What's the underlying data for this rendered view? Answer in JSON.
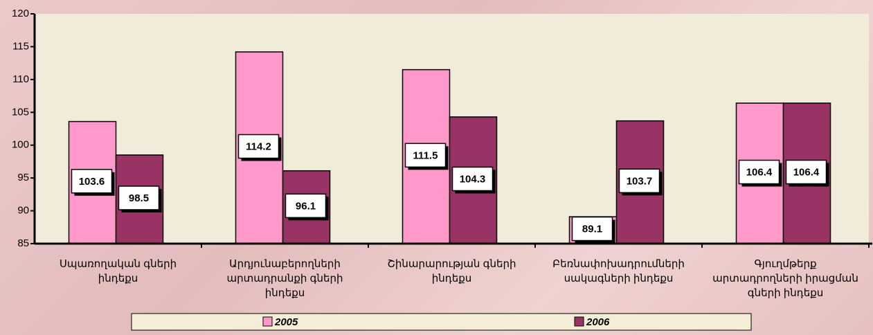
{
  "chart_data": {
    "type": "bar",
    "categories": [
      "Սպառողական գների ինդեքս",
      "Արդյունաբերողների արտադրանքի գների ինդեքս",
      "Շինարարության գների ինդեքս",
      "Բեռնափոխադրումների սակագների ինդեքս",
      "Գյուղմթերք արտադրողների իրացման գների ինդեքս"
    ],
    "series": [
      {
        "name": "2005",
        "color": "#ff99cc",
        "values": [
          103.6,
          114.2,
          111.5,
          89.1,
          106.4
        ]
      },
      {
        "name": "2006",
        "color": "#993366",
        "values": [
          98.5,
          96.1,
          104.3,
          103.7,
          106.4
        ]
      }
    ],
    "ylim": [
      85,
      120
    ],
    "yticks": [
      85,
      90,
      95,
      100,
      105,
      110,
      115,
      120
    ],
    "legend": "bottom"
  }
}
